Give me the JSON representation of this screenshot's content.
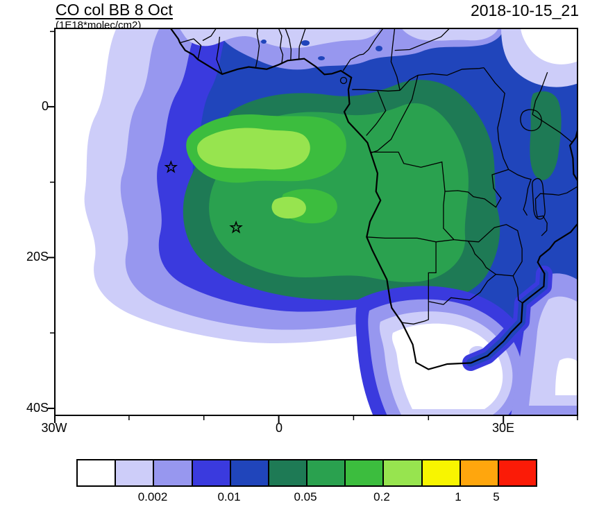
{
  "header": {
    "title": "CO col BB 8 Oct",
    "subtitle": "(1E18*molec/cm2)",
    "datestamp": "2018-10-15_21"
  },
  "axes": {
    "y_tick_labels": [
      "0",
      "20S",
      "40S"
    ],
    "x_tick_labels": [
      "30W",
      "0",
      "30E"
    ]
  },
  "colorbar": {
    "colors": [
      "#ffffff",
      "#cdcdf9",
      "#9797ef",
      "#3a3ade",
      "#2045bb",
      "#1e7a55",
      "#2aa14f",
      "#3cbd3e",
      "#97e44f",
      "#f8f500",
      "#ffa60d",
      "#fb1b07"
    ],
    "tick_labels": [
      "0.002",
      "0.01",
      "0.05",
      "0.2",
      "1",
      "5"
    ],
    "tick_boundary_indices": [
      2,
      4,
      6,
      8,
      10,
      11
    ],
    "n_cells": 12
  },
  "chart_data": {
    "type": "heatmap",
    "title": "CO col BB 8 Oct",
    "units": "1E18*molec/cm2",
    "timestamp": "2018-10-15_21",
    "projection": "lat-lon map, Africa and South Atlantic",
    "lon_range_deg": [
      -30,
      40
    ],
    "lat_range_deg": [
      -41,
      10.5
    ],
    "x_tick_lons": [
      -30,
      0,
      30
    ],
    "y_tick_lats": [
      0,
      -20,
      -40
    ],
    "contour_levels": [
      0.001,
      0.002,
      0.005,
      0.01,
      0.02,
      0.05,
      0.1,
      0.2,
      0.5,
      1,
      5
    ],
    "labeled_levels": [
      0.002,
      0.01,
      0.05,
      0.2,
      1,
      5
    ],
    "visible_range_note": "Filled contours reach only the 0.2-0.5 bin (light green) in the plume core over the SE Atlantic and Angola/Congo; yellow, orange and red bins (>=0.5) are not present on the map.",
    "markers": [
      {
        "symbol": "star",
        "lon": -14.4,
        "lat": -8.0
      },
      {
        "symbol": "star",
        "lon": -5.7,
        "lat": -16.0
      }
    ]
  }
}
